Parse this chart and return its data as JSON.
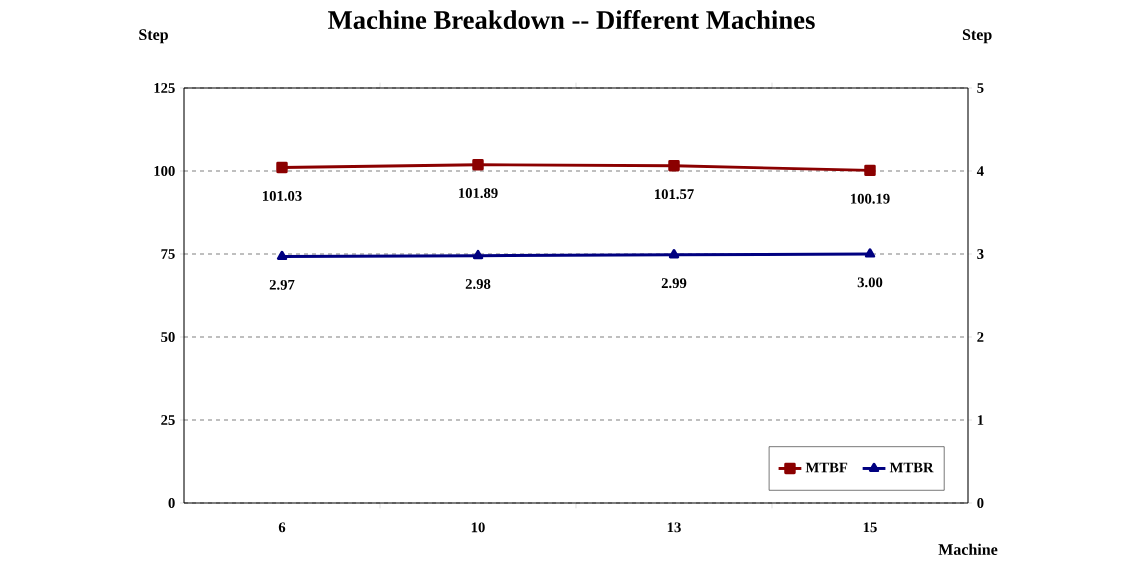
{
  "chart_data": {
    "type": "line",
    "title": "Machine Breakdown -- Different Machines",
    "xlabel": "Machine",
    "ylabel": "Step",
    "y2label": "Step",
    "categories": [
      "6",
      "10",
      "13",
      "15"
    ],
    "series": [
      {
        "name": "MTBF",
        "color": "#8b0000",
        "marker": "square",
        "values": [
          101.03,
          101.89,
          101.57,
          100.19
        ],
        "value_labels": [
          "101.03",
          "101.89",
          "101.57",
          "100.19"
        ]
      },
      {
        "name": "MTBR",
        "color": "#000080",
        "marker": "triangle",
        "axis": "y2",
        "values": [
          2.97,
          2.98,
          2.99,
          3.0
        ],
        "value_labels": [
          "2.97",
          "2.98",
          "2.99",
          "3.00"
        ]
      }
    ],
    "ylim": [
      0,
      125
    ],
    "yticks": [
      0,
      25,
      50,
      75,
      100,
      125
    ],
    "y2lim": [
      0,
      5
    ],
    "y2ticks": [
      0,
      1,
      2,
      3,
      4,
      5
    ],
    "grid": "y",
    "legend": "bottom right"
  }
}
